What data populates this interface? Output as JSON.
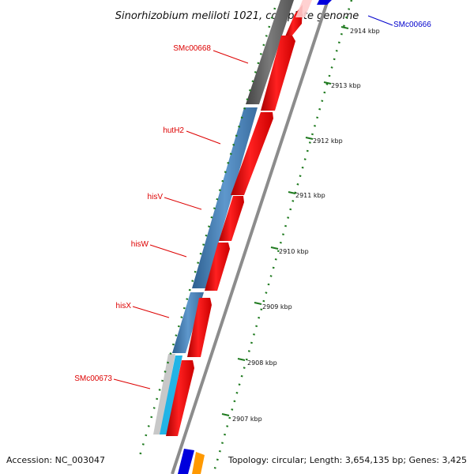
{
  "title": "Sinorhizobium meliloti 1021, complete genome",
  "footer": {
    "accession": "Accession: NC_003047",
    "summary": "Topology: circular; Length: 3,654,135 bp; Genes: 3,425"
  },
  "gene_labels": [
    {
      "text": "SMc00666",
      "color": "#0000cc"
    },
    {
      "text": "SMc00668",
      "color": "#dd0000"
    },
    {
      "text": "hutH2",
      "color": "#dd0000"
    },
    {
      "text": "hisV",
      "color": "#dd0000"
    },
    {
      "text": "hisW",
      "color": "#dd0000"
    },
    {
      "text": "hisX",
      "color": "#dd0000"
    },
    {
      "text": "SMc00673",
      "color": "#dd0000"
    }
  ],
  "scale_ticks": [
    "2914 kbp",
    "2913 kbp",
    "2912 kbp",
    "2911 kbp",
    "2910 kbp",
    "2909 kbp",
    "2908 kbp",
    "2907 kbp"
  ],
  "colors": {
    "cds_forward": "#ff0000",
    "gene_blue": "#4a82b8",
    "gene_gray": "#6e6e6e",
    "gene_cyan": "#22b4e6",
    "tick_green": "#1f7a1f",
    "orange": "#ff9900",
    "dark_blue": "#0000dd",
    "backbone": "#8c8c8c"
  }
}
